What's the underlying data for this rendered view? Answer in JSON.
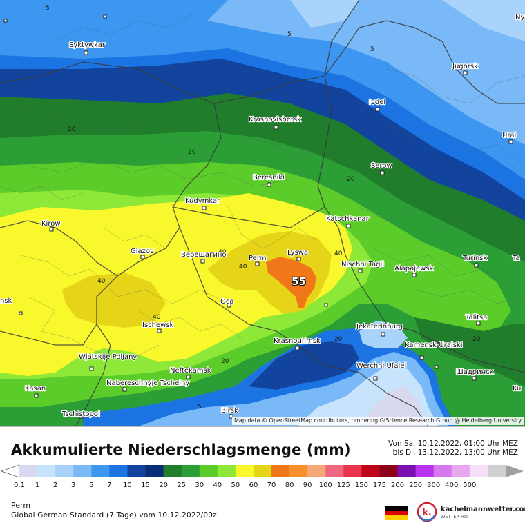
{
  "map": {
    "max_label": "55",
    "isoline_labels": [
      "5",
      "5",
      "5",
      "5",
      "20",
      "20",
      "20",
      "20",
      "20",
      "20",
      "40",
      "40",
      "40",
      "40",
      "40"
    ],
    "cities": [
      {
        "name": "Syktywkar"
      },
      {
        "name": "Jugorsk"
      },
      {
        "name": "Ivdel"
      },
      {
        "name": "Krasnovishersk"
      },
      {
        "name": "Urai"
      },
      {
        "name": "Serow"
      },
      {
        "name": "Beresniki"
      },
      {
        "name": "Kudymkar"
      },
      {
        "name": "Katschkanar"
      },
      {
        "name": "Kirow"
      },
      {
        "name": "Glazov"
      },
      {
        "name": "Верещагино"
      },
      {
        "name": "Perm"
      },
      {
        "name": "Lyswa"
      },
      {
        "name": "Nischni Tagil"
      },
      {
        "name": "Alapajewsk"
      },
      {
        "name": "Turinsk"
      },
      {
        "name": "Oca"
      },
      {
        "name": "Ischewsk"
      },
      {
        "name": "Talitsa"
      },
      {
        "name": "Jekaterinburg"
      },
      {
        "name": "Krasnoufimsk"
      },
      {
        "name": "Kamensk-Uralski"
      },
      {
        "name": "Wjatskije Poljany"
      },
      {
        "name": "Neftekamsk"
      },
      {
        "name": "Werchni Ufalei"
      },
      {
        "name": "Шадринск"
      },
      {
        "name": "Nabereschnyje Tschelny"
      },
      {
        "name": "Kasan"
      },
      {
        "name": "Birsk"
      },
      {
        "name": "Tschistopol"
      },
      {
        "name": "Ny"
      },
      {
        "name": "Ta"
      },
      {
        "name": "nsk"
      },
      {
        "name": "Ku"
      }
    ],
    "attribution": "Map data © OpenStreetMap contributors, rendering GIScience Research Group @ Heidelberg University"
  },
  "legend": {
    "title": "Akkumulierte Niederschlagsmenge (mm)",
    "period_from": "Von Sa. 10.12.2022, 01:00 Uhr MEZ",
    "period_to": "bis Di. 13.12.2022, 13:00 Uhr MEZ",
    "ticks": [
      "0.1",
      "1",
      "2",
      "3",
      "5",
      "7",
      "10",
      "15",
      "20",
      "25",
      "30",
      "40",
      "50",
      "60",
      "70",
      "80",
      "90",
      "100",
      "125",
      "150",
      "175",
      "200",
      "250",
      "300",
      "400",
      "500"
    ],
    "colors": [
      "#d8d8ee",
      "#c8e4fc",
      "#a9d3fb",
      "#79b9f7",
      "#3d96f0",
      "#1c74e2",
      "#12449e",
      "#0a2d7a",
      "#1f7d2c",
      "#2c9e36",
      "#5ccc2a",
      "#8ee838",
      "#f8f82c",
      "#e6d418",
      "#f07818",
      "#f8902c",
      "#f8a878",
      "#f06880",
      "#e8344c",
      "#c00418",
      "#8c0018",
      "#7c10b0",
      "#b834f0",
      "#d878f0",
      "#e8a8f0",
      "#f6e0f8",
      "#d0d0d0"
    ],
    "location": "Perm",
    "model": "Global German Standard (7 Tage) vom  10.12.2022/00z"
  },
  "brand": {
    "logo_letter": "k.",
    "name": "kachelmannwetter.com",
    "sub": "WETTER HD"
  }
}
